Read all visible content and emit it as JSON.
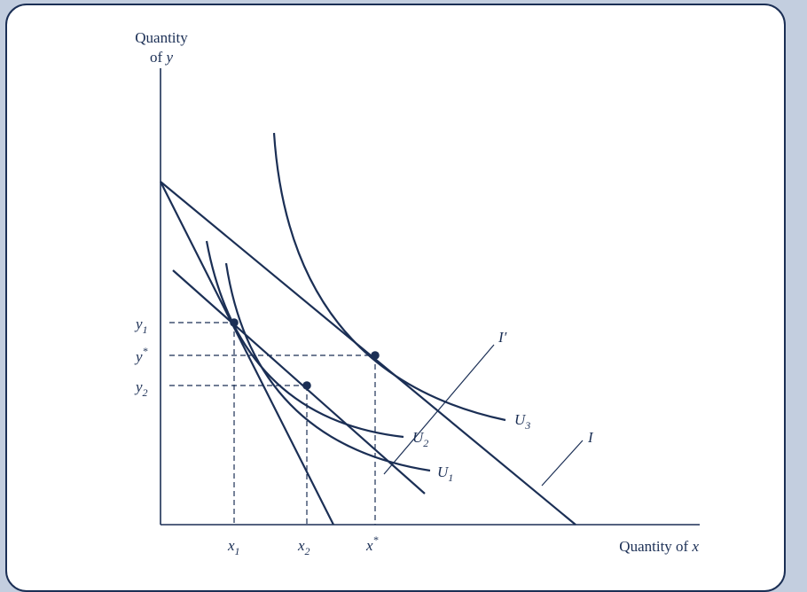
{
  "diagram": {
    "y_axis_label_line1": "Quantity",
    "y_axis_label_line2_prefix": "of ",
    "y_axis_label_line2_var": "y",
    "x_axis_label_prefix": "Quantity of ",
    "x_axis_label_var": "x",
    "x_ticks": [
      {
        "base": "x",
        "sub": "1",
        "sup": ""
      },
      {
        "base": "x",
        "sub": "2",
        "sup": ""
      },
      {
        "base": "x",
        "sub": "",
        "sup": "*"
      }
    ],
    "y_ticks": [
      {
        "base": "y",
        "sub": "1",
        "sup": ""
      },
      {
        "base": "y",
        "sub": "",
        "sup": "*"
      },
      {
        "base": "y",
        "sub": "2",
        "sup": ""
      }
    ],
    "curve_labels": {
      "u1": {
        "base": "U",
        "sub": "1"
      },
      "u2": {
        "base": "U",
        "sub": "2"
      },
      "u3": {
        "base": "U",
        "sub": "3"
      },
      "i": "I",
      "i_prime": "I′"
    },
    "colors": {
      "ink": "#1b2f55",
      "frame": "#c3cedf",
      "panel": "#ffffff"
    }
  }
}
